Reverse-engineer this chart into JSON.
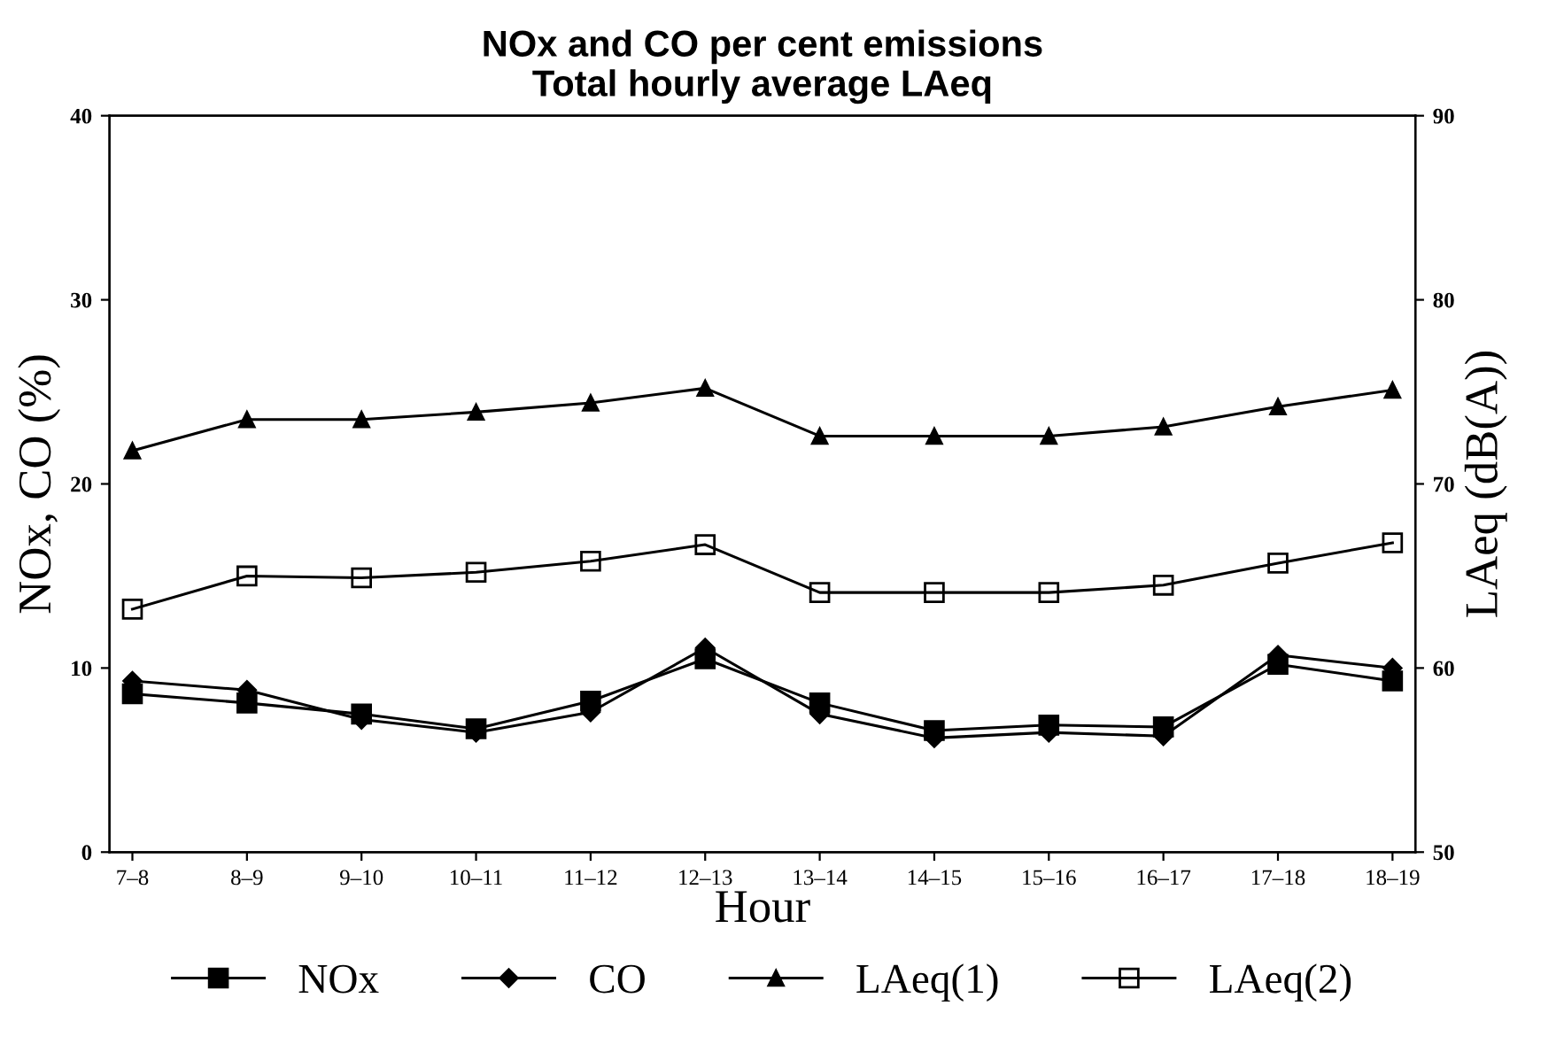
{
  "chart_data": {
    "type": "line",
    "title": "NOx and CO per cent emissions\nTotal hourly average LAeq",
    "xlabel": "Hour",
    "ylabel": "NOx, CO (%)",
    "y2label": "LAeq (dB(A))",
    "categories": [
      "7–8",
      "8–9",
      "9–10",
      "10–11",
      "11–12",
      "12–13",
      "13–14",
      "14–15",
      "15–16",
      "16–17",
      "17–18",
      "18–19"
    ],
    "ylim": [
      0,
      40
    ],
    "yticks": [
      0,
      10,
      20,
      30,
      40
    ],
    "y2lim": [
      50,
      90
    ],
    "y2ticks": [
      50,
      60,
      70,
      80,
      90
    ],
    "grid": false,
    "legend": "bottom",
    "line_style": "solid",
    "series": [
      {
        "name": "NOx",
        "color": "#000000",
        "marker": "square",
        "values": [
          8.6,
          8.1,
          7.5,
          6.7,
          8.2,
          10.5,
          8.1,
          6.6,
          6.9,
          6.8,
          10.2,
          9.3
        ]
      },
      {
        "name": "CO",
        "color": "#000000",
        "marker": "diamond",
        "values": [
          9.3,
          8.8,
          7.2,
          6.5,
          7.6,
          11.1,
          7.5,
          6.2,
          6.5,
          6.3,
          10.7,
          10.0
        ]
      },
      {
        "name": "LAeq(1)",
        "color": "#000000",
        "marker": "triangle",
        "axis": "y2",
        "values": [
          71.8,
          73.5,
          73.5,
          73.9,
          74.4,
          75.2,
          72.6,
          72.6,
          72.6,
          73.1,
          74.2,
          75.1
        ]
      },
      {
        "name": "LAeq(2)",
        "color": "#000000",
        "marker": "square",
        "axis": "y2",
        "values": [
          63.2,
          65.0,
          64.9,
          65.2,
          65.8,
          66.7,
          64.1,
          64.1,
          64.1,
          64.5,
          65.7,
          66.8
        ]
      }
    ]
  }
}
